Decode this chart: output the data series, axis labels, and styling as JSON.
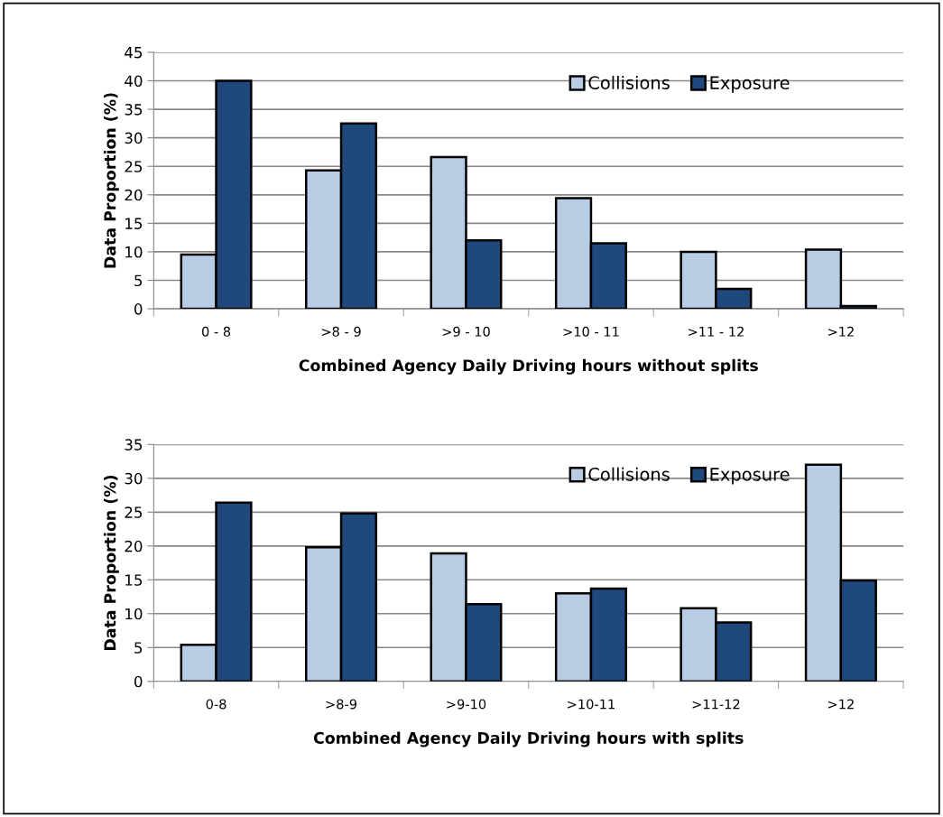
{
  "chart_data": [
    {
      "type": "bar",
      "xlabel": "Combined Agency Daily Driving hours without splits",
      "ylabel": "Data Proportion (%)",
      "categories": [
        "0 - 8",
        ">8 - 9",
        ">9 - 10",
        ">10 - 11",
        ">11 - 12",
        ">12"
      ],
      "series": [
        {
          "name": "Collisions",
          "color": "#b8cce4",
          "values": [
            9.5,
            24.3,
            26.6,
            19.4,
            10.0,
            10.4
          ]
        },
        {
          "name": "Exposure",
          "color": "#1f497d",
          "values": [
            40.0,
            32.5,
            12.0,
            11.5,
            3.5,
            0.5
          ]
        }
      ],
      "ylim": [
        0,
        45
      ],
      "yticks": [
        0,
        5,
        10,
        15,
        20,
        25,
        30,
        35,
        40,
        45
      ],
      "grid": "y",
      "legend": "top right"
    },
    {
      "type": "bar",
      "xlabel": "Combined Agency Daily Driving hours with splits",
      "ylabel": "Data Proportion (%)",
      "categories": [
        "0-8",
        ">8-9",
        ">9-10",
        ">10-11",
        ">11-12",
        ">12"
      ],
      "series": [
        {
          "name": "Collisions",
          "color": "#b8cce4",
          "values": [
            5.4,
            19.8,
            18.9,
            13.0,
            10.8,
            32.0
          ]
        },
        {
          "name": "Exposure",
          "color": "#1f497d",
          "values": [
            26.4,
            24.8,
            11.4,
            13.7,
            8.7,
            14.9
          ]
        }
      ],
      "ylim": [
        0,
        35
      ],
      "yticks": [
        0,
        5,
        10,
        15,
        20,
        25,
        30,
        35
      ],
      "grid": "y",
      "legend": "top right"
    }
  ]
}
